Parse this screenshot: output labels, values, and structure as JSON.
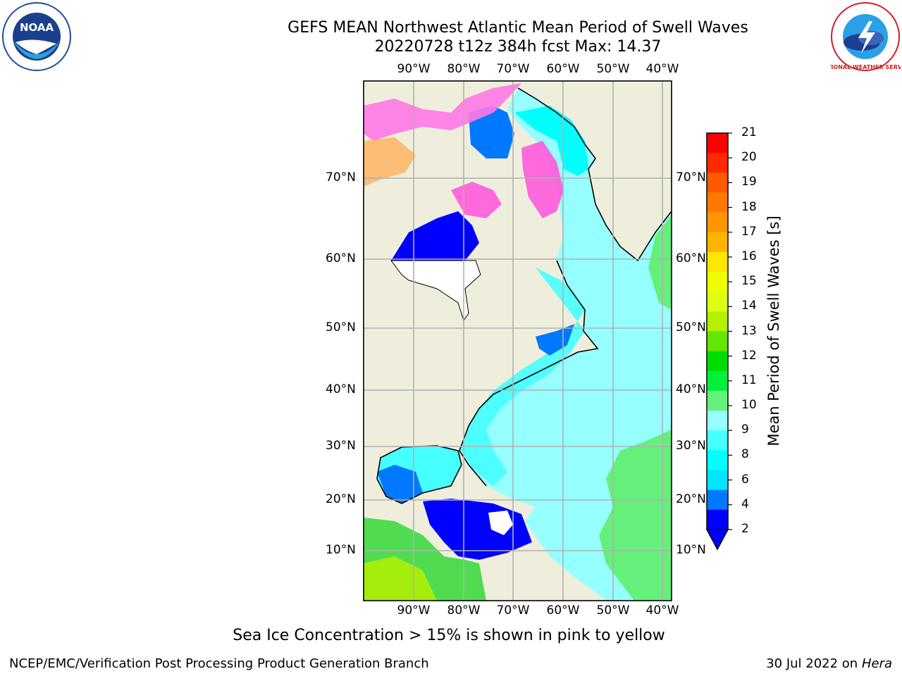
{
  "title": {
    "line1": "GEFS MEAN Northwest Atlantic Mean Period of Swell Waves",
    "line2": "20220728 t12z 384h fcst   Max: 14.37"
  },
  "map": {
    "longitude_labels": [
      "90°W",
      "80°W",
      "70°W",
      "60°W",
      "50°W",
      "40°W"
    ],
    "latitude_labels": [
      "70°N",
      "60°N",
      "50°N",
      "40°N",
      "30°N",
      "20°N",
      "10°N"
    ],
    "land_color": "#efeedc",
    "grid_color": "#b0b0b0"
  },
  "colorbar": {
    "title": "Mean Period of Swell Waves [s]",
    "ticks": [
      "21",
      "20",
      "19",
      "18",
      "17",
      "16",
      "15",
      "14",
      "13",
      "12",
      "11",
      "10",
      "9",
      "8",
      "6",
      "4",
      "2"
    ],
    "colors": [
      "#ff0000",
      "#ff2a00",
      "#ff5a00",
      "#ff7800",
      "#ff9600",
      "#ffb400",
      "#ffe600",
      "#f0ff00",
      "#dcff14",
      "#b4f000",
      "#64e600",
      "#00dc00",
      "#00f03c",
      "#64f07a",
      "#96ffff",
      "#46ffff",
      "#00ffff",
      "#00e6ff",
      "#0078ff",
      "#0000ff"
    ]
  },
  "note": "Sea Ice Concentration > 15% is shown in pink to yellow",
  "footer": {
    "left": "NCEP/EMC/Verification Post Processing Product Generation Branch",
    "right_date": "30 Jul 2022 on",
    "right_machine": "Hera"
  },
  "logos": {
    "noaa_text": "NOAA",
    "nws_text": "NATIONAL WEATHER SERVICE"
  }
}
